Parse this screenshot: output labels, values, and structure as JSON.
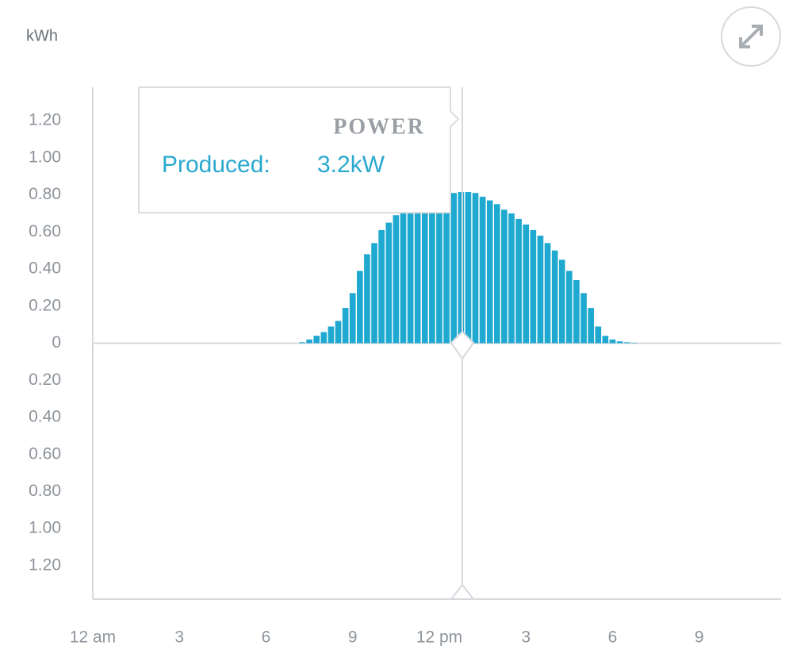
{
  "chart_data": {
    "type": "bar",
    "y_label": "kWh",
    "x": [
      7.25,
      7.5,
      7.75,
      8,
      8.25,
      8.5,
      8.75,
      9,
      9.25,
      9.5,
      9.75,
      10,
      10.25,
      10.5,
      10.75,
      11,
      11.25,
      11.5,
      11.75,
      12,
      12.25,
      12.5,
      12.75,
      13,
      13.25,
      13.5,
      13.75,
      14,
      14.25,
      14.5,
      14.75,
      15,
      15.25,
      15.5,
      15.75,
      16,
      16.25,
      16.5,
      16.75,
      17,
      17.25,
      17.5,
      17.75,
      18,
      18.25,
      18.5,
      18.75
    ],
    "values": [
      0.005,
      0.02,
      0.04,
      0.06,
      0.09,
      0.12,
      0.19,
      0.27,
      0.39,
      0.48,
      0.54,
      0.61,
      0.65,
      0.69,
      0.71,
      0.73,
      0.75,
      0.77,
      0.78,
      0.79,
      0.8,
      0.81,
      0.815,
      0.815,
      0.81,
      0.79,
      0.77,
      0.75,
      0.72,
      0.7,
      0.67,
      0.64,
      0.61,
      0.58,
      0.54,
      0.5,
      0.45,
      0.39,
      0.34,
      0.27,
      0.19,
      0.09,
      0.04,
      0.02,
      0.01,
      0.005,
      0.002
    ],
    "color": "#1fa9d1",
    "xlim": [
      0,
      24
    ],
    "xticks": [
      {
        "value": 0,
        "label": "12 am"
      },
      3,
      6,
      9,
      {
        "value": 12,
        "label": "12 pm"
      },
      {
        "value": 15,
        "label": "3"
      },
      {
        "value": 18,
        "label": "6"
      },
      {
        "value": 21,
        "label": "9"
      }
    ],
    "ylim": [
      -1.38,
      1.38
    ],
    "yticks": [
      {
        "value": 1.2,
        "label": "1.20"
      },
      {
        "value": 1,
        "label": "1.00"
      },
      {
        "value": 0.8,
        "label": "0.80"
      },
      {
        "value": 0.6,
        "label": "0.60"
      },
      {
        "value": 0.4,
        "label": "0.40"
      },
      {
        "value": 0.2,
        "label": "0.20"
      },
      0,
      {
        "value": -0.2,
        "label": "0.20"
      },
      {
        "value": -0.4,
        "label": "0.40"
      },
      {
        "value": -0.6,
        "label": "0.60"
      },
      {
        "value": -0.8,
        "label": "0.80"
      },
      {
        "value": -1,
        "label": "1.00"
      },
      {
        "value": -1.2,
        "label": "1.20"
      }
    ],
    "grid": false,
    "tooltip": {
      "title": "POWER",
      "label": "Produced:",
      "value_label": "3.2kW"
    }
  }
}
